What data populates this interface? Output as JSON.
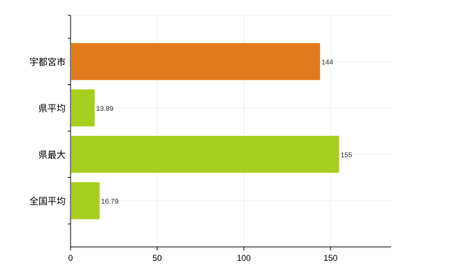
{
  "chart_data": {
    "type": "bar",
    "orientation": "horizontal",
    "categories": [
      "宇都宮市",
      "県平均",
      "県最大",
      "全国平均"
    ],
    "values": [
      144,
      13.89,
      155,
      16.79
    ],
    "value_labels": [
      "144",
      "13.89",
      "155",
      "16.79"
    ],
    "bar_colors": [
      "#E07A1F",
      "#A6CE1E",
      "#A6CE1E",
      "#A6CE1E"
    ],
    "xlim": [
      0,
      185
    ],
    "xticks": [
      0,
      50,
      100,
      150
    ],
    "xtick_labels": [
      "0",
      "50",
      "100",
      "150"
    ],
    "grid": true,
    "grid_style": "dotted",
    "legend": "none"
  }
}
